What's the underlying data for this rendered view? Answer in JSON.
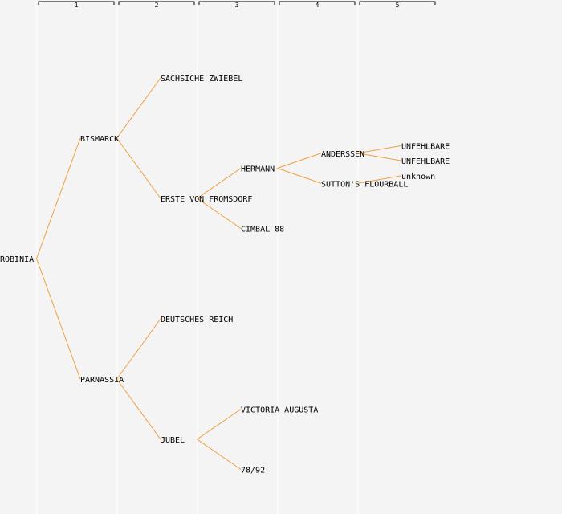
{
  "colors": {
    "background": "#f4f4f4",
    "edge": "#f0a040",
    "grid": "#ffffff",
    "bracket": "#000000",
    "text": "#000000"
  },
  "columns": [
    "1",
    "2",
    "3",
    "4",
    "5"
  ],
  "tree": {
    "label": "ROBINIA",
    "children": [
      {
        "label": "BISMARCK",
        "children": [
          {
            "label": "SACHSICHE ZWIEBEL",
            "children": []
          },
          {
            "label": "ERSTE VON FROMSDORF",
            "children": [
              {
                "label": "HERMANN",
                "children": [
                  {
                    "label": "ANDERSSEN",
                    "children": [
                      {
                        "label": "UNFEHLBARE",
                        "children": []
                      },
                      {
                        "label": "UNFEHLBARE",
                        "children": []
                      }
                    ]
                  },
                  {
                    "label": "SUTTON'S FLOURBALL",
                    "children": [
                      {
                        "label": "unknown",
                        "children": []
                      }
                    ]
                  }
                ]
              },
              {
                "label": "CIMBAL 88",
                "children": []
              }
            ]
          }
        ]
      },
      {
        "label": "PARNASSIA",
        "children": [
          {
            "label": "DEUTSCHES REICH",
            "children": []
          },
          {
            "label": "JUBEL",
            "children": [
              {
                "label": "VICTORIA AUGUSTA",
                "children": []
              },
              {
                "label": "78/92",
                "children": []
              }
            ]
          }
        ]
      }
    ]
  }
}
